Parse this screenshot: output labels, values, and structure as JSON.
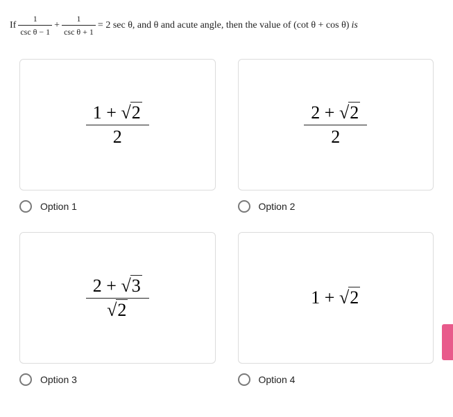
{
  "question": {
    "prefix": "If ",
    "frac1": {
      "num": "1",
      "den": "csc θ − 1"
    },
    "plus": " + ",
    "frac2": {
      "num": "1",
      "den": "csc θ + 1"
    },
    "eq": " = 2 sec θ,  and θ and acute angle, then the value of  (cot θ + cos θ)  ",
    "italic_is": "is"
  },
  "options": [
    {
      "label": "Option 1",
      "expr": {
        "type": "frac",
        "num_pre": "1 + ",
        "num_rad": "2",
        "den": "2"
      }
    },
    {
      "label": "Option 2",
      "expr": {
        "type": "frac",
        "num_pre": "2 + ",
        "num_rad": "2",
        "den": "2"
      }
    },
    {
      "label": "Option 3",
      "expr": {
        "type": "frac-rad-den",
        "num_pre": "2 + ",
        "num_rad": "3",
        "den_rad": "2"
      }
    },
    {
      "label": "Option 4",
      "expr": {
        "type": "plain",
        "pre": "1 + ",
        "rad": "2"
      }
    }
  ],
  "colors": {
    "border": "#dcdcdc",
    "text": "#222222",
    "radio_border": "#797979",
    "accent": "#e85a8b",
    "background": "#ffffff"
  }
}
